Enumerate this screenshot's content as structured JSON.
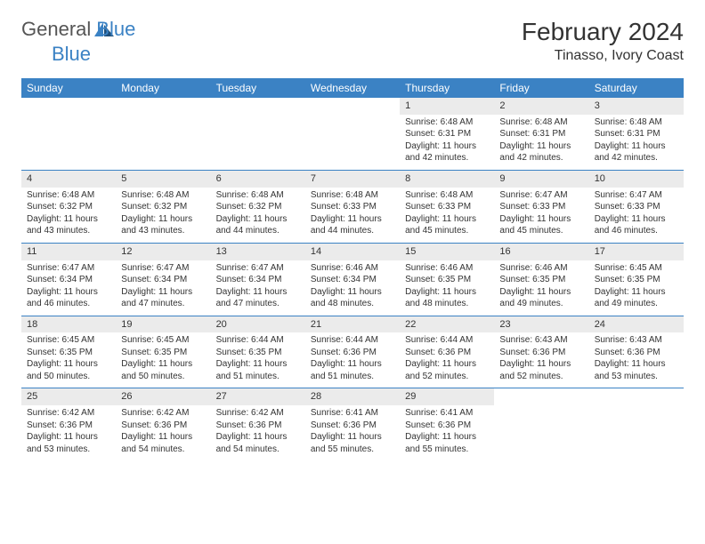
{
  "brand": {
    "general": "General",
    "blue": "Blue"
  },
  "title": "February 2024",
  "location": "Tinasso, Ivory Coast",
  "colors": {
    "header_bg": "#3b82c4",
    "daynum_bg": "#ebebeb",
    "divider": "#3b82c4",
    "logo_blue": "#3b82c4",
    "logo_dark": "#1e4e79"
  },
  "day_headers": [
    "Sunday",
    "Monday",
    "Tuesday",
    "Wednesday",
    "Thursday",
    "Friday",
    "Saturday"
  ],
  "weeks": [
    {
      "nums": [
        "",
        "",
        "",
        "",
        "1",
        "2",
        "3"
      ],
      "cells": [
        [],
        [],
        [],
        [],
        [
          "Sunrise: 6:48 AM",
          "Sunset: 6:31 PM",
          "Daylight: 11 hours",
          "and 42 minutes."
        ],
        [
          "Sunrise: 6:48 AM",
          "Sunset: 6:31 PM",
          "Daylight: 11 hours",
          "and 42 minutes."
        ],
        [
          "Sunrise: 6:48 AM",
          "Sunset: 6:31 PM",
          "Daylight: 11 hours",
          "and 42 minutes."
        ]
      ]
    },
    {
      "nums": [
        "4",
        "5",
        "6",
        "7",
        "8",
        "9",
        "10"
      ],
      "cells": [
        [
          "Sunrise: 6:48 AM",
          "Sunset: 6:32 PM",
          "Daylight: 11 hours",
          "and 43 minutes."
        ],
        [
          "Sunrise: 6:48 AM",
          "Sunset: 6:32 PM",
          "Daylight: 11 hours",
          "and 43 minutes."
        ],
        [
          "Sunrise: 6:48 AM",
          "Sunset: 6:32 PM",
          "Daylight: 11 hours",
          "and 44 minutes."
        ],
        [
          "Sunrise: 6:48 AM",
          "Sunset: 6:33 PM",
          "Daylight: 11 hours",
          "and 44 minutes."
        ],
        [
          "Sunrise: 6:48 AM",
          "Sunset: 6:33 PM",
          "Daylight: 11 hours",
          "and 45 minutes."
        ],
        [
          "Sunrise: 6:47 AM",
          "Sunset: 6:33 PM",
          "Daylight: 11 hours",
          "and 45 minutes."
        ],
        [
          "Sunrise: 6:47 AM",
          "Sunset: 6:33 PM",
          "Daylight: 11 hours",
          "and 46 minutes."
        ]
      ]
    },
    {
      "nums": [
        "11",
        "12",
        "13",
        "14",
        "15",
        "16",
        "17"
      ],
      "cells": [
        [
          "Sunrise: 6:47 AM",
          "Sunset: 6:34 PM",
          "Daylight: 11 hours",
          "and 46 minutes."
        ],
        [
          "Sunrise: 6:47 AM",
          "Sunset: 6:34 PM",
          "Daylight: 11 hours",
          "and 47 minutes."
        ],
        [
          "Sunrise: 6:47 AM",
          "Sunset: 6:34 PM",
          "Daylight: 11 hours",
          "and 47 minutes."
        ],
        [
          "Sunrise: 6:46 AM",
          "Sunset: 6:34 PM",
          "Daylight: 11 hours",
          "and 48 minutes."
        ],
        [
          "Sunrise: 6:46 AM",
          "Sunset: 6:35 PM",
          "Daylight: 11 hours",
          "and 48 minutes."
        ],
        [
          "Sunrise: 6:46 AM",
          "Sunset: 6:35 PM",
          "Daylight: 11 hours",
          "and 49 minutes."
        ],
        [
          "Sunrise: 6:45 AM",
          "Sunset: 6:35 PM",
          "Daylight: 11 hours",
          "and 49 minutes."
        ]
      ]
    },
    {
      "nums": [
        "18",
        "19",
        "20",
        "21",
        "22",
        "23",
        "24"
      ],
      "cells": [
        [
          "Sunrise: 6:45 AM",
          "Sunset: 6:35 PM",
          "Daylight: 11 hours",
          "and 50 minutes."
        ],
        [
          "Sunrise: 6:45 AM",
          "Sunset: 6:35 PM",
          "Daylight: 11 hours",
          "and 50 minutes."
        ],
        [
          "Sunrise: 6:44 AM",
          "Sunset: 6:35 PM",
          "Daylight: 11 hours",
          "and 51 minutes."
        ],
        [
          "Sunrise: 6:44 AM",
          "Sunset: 6:36 PM",
          "Daylight: 11 hours",
          "and 51 minutes."
        ],
        [
          "Sunrise: 6:44 AM",
          "Sunset: 6:36 PM",
          "Daylight: 11 hours",
          "and 52 minutes."
        ],
        [
          "Sunrise: 6:43 AM",
          "Sunset: 6:36 PM",
          "Daylight: 11 hours",
          "and 52 minutes."
        ],
        [
          "Sunrise: 6:43 AM",
          "Sunset: 6:36 PM",
          "Daylight: 11 hours",
          "and 53 minutes."
        ]
      ]
    },
    {
      "nums": [
        "25",
        "26",
        "27",
        "28",
        "29",
        "",
        ""
      ],
      "cells": [
        [
          "Sunrise: 6:42 AM",
          "Sunset: 6:36 PM",
          "Daylight: 11 hours",
          "and 53 minutes."
        ],
        [
          "Sunrise: 6:42 AM",
          "Sunset: 6:36 PM",
          "Daylight: 11 hours",
          "and 54 minutes."
        ],
        [
          "Sunrise: 6:42 AM",
          "Sunset: 6:36 PM",
          "Daylight: 11 hours",
          "and 54 minutes."
        ],
        [
          "Sunrise: 6:41 AM",
          "Sunset: 6:36 PM",
          "Daylight: 11 hours",
          "and 55 minutes."
        ],
        [
          "Sunrise: 6:41 AM",
          "Sunset: 6:36 PM",
          "Daylight: 11 hours",
          "and 55 minutes."
        ],
        [],
        []
      ]
    }
  ]
}
